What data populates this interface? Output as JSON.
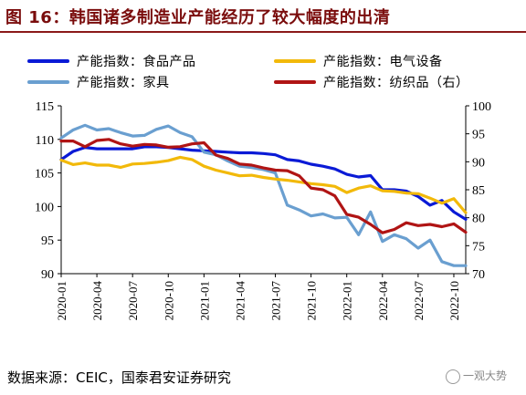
{
  "title": "图 16：韩国诸多制造业产能经历了较大幅度的出清",
  "source": "数据来源：CEIC，国泰君安证券研究",
  "watermark": "一观大势",
  "chart_data": {
    "type": "line",
    "xlabel": "",
    "ylabel": "",
    "x": [
      "2020-01",
      "2020-02",
      "2020-03",
      "2020-04",
      "2020-05",
      "2020-06",
      "2020-07",
      "2020-08",
      "2020-09",
      "2020-10",
      "2020-11",
      "2020-12",
      "2021-01",
      "2021-02",
      "2021-03",
      "2021-04",
      "2021-05",
      "2021-06",
      "2021-07",
      "2021-08",
      "2021-09",
      "2021-10",
      "2021-11",
      "2021-12",
      "2022-01",
      "2022-02",
      "2022-03",
      "2022-04",
      "2022-05",
      "2022-06",
      "2022-07",
      "2022-08",
      "2022-09",
      "2022-10",
      "2022-11"
    ],
    "x_ticks": [
      "2020-01",
      "2020-04",
      "2020-07",
      "2020-10",
      "2021-01",
      "2021-04",
      "2021-07",
      "2021-10",
      "2022-01",
      "2022-04",
      "2022-07",
      "2022-10"
    ],
    "y_left": {
      "ylim": [
        90,
        115
      ],
      "ticks": [
        90,
        95,
        100,
        105,
        110,
        115
      ]
    },
    "y_right": {
      "ylim": [
        70,
        100
      ],
      "ticks": [
        70,
        75,
        80,
        85,
        90,
        95,
        100
      ]
    },
    "grid": false,
    "legend_position": "top",
    "series": [
      {
        "name": "产能指数：食品产品",
        "axis": "left",
        "color": "#0a1ad6",
        "values": [
          107.0,
          108.2,
          108.8,
          108.6,
          108.6,
          108.6,
          108.6,
          108.9,
          108.9,
          108.8,
          108.6,
          108.4,
          108.3,
          108.2,
          108.1,
          108.0,
          108.0,
          107.9,
          107.7,
          107.0,
          106.8,
          106.3,
          106.0,
          105.6,
          104.8,
          104.4,
          104.6,
          102.5,
          102.5,
          102.3,
          101.5,
          100.2,
          100.9,
          99.2,
          98.1
        ]
      },
      {
        "name": "产能指数：家具",
        "axis": "left",
        "color": "#6a9fd0",
        "values": [
          110.2,
          111.4,
          112.1,
          111.4,
          111.6,
          111.0,
          110.5,
          110.6,
          111.5,
          112.0,
          111.0,
          110.4,
          108.1,
          107.7,
          106.8,
          106.0,
          105.8,
          105.5,
          105.0,
          100.2,
          99.5,
          98.6,
          98.9,
          98.3,
          98.4,
          95.8,
          99.2,
          94.8,
          95.8,
          95.2,
          93.8,
          95.0,
          91.8,
          91.2,
          91.2
        ]
      },
      {
        "name": "产能指数：电气设备",
        "axis": "right",
        "color": "#f2b90a",
        "values": [
          90.3,
          89.5,
          89.8,
          89.4,
          89.4,
          89.0,
          89.6,
          89.7,
          89.9,
          90.2,
          90.8,
          90.4,
          89.2,
          88.5,
          88.0,
          87.5,
          87.6,
          87.2,
          86.9,
          86.7,
          86.4,
          86.1,
          85.9,
          85.6,
          84.5,
          85.3,
          85.7,
          84.8,
          84.7,
          84.4,
          84.3,
          83.5,
          82.6,
          83.4,
          80.9
        ]
      },
      {
        "name": "产能指数：纺织品（右）",
        "axis": "right",
        "color": "#b01414",
        "values": [
          93.7,
          93.7,
          92.7,
          93.8,
          94.0,
          93.2,
          92.8,
          93.1,
          93.0,
          92.6,
          92.7,
          93.2,
          93.4,
          91.2,
          90.6,
          89.6,
          89.4,
          88.9,
          88.5,
          88.4,
          87.5,
          85.3,
          85.0,
          83.9,
          80.6,
          80.1,
          78.8,
          77.3,
          77.9,
          79.1,
          78.6,
          78.8,
          78.4,
          78.9,
          77.4
        ]
      }
    ]
  }
}
